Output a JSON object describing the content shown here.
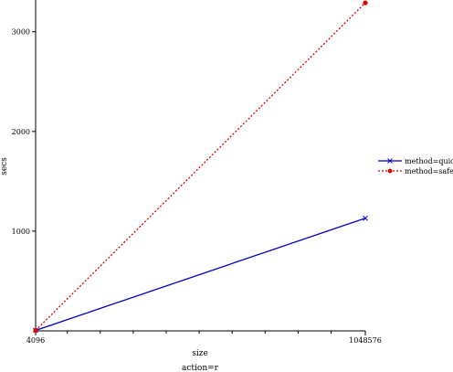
{
  "chart_data": {
    "type": "line",
    "xlabel": "size",
    "ylabel": "secs",
    "footer": "action=r",
    "xlim": [
      4096,
      1048576
    ],
    "ylim": [
      0,
      3300
    ],
    "x_ticks": [
      {
        "value": 4096,
        "label": "4096"
      },
      {
        "value": 1048576,
        "label": "1048576"
      }
    ],
    "x_minor_ticks": [
      104448,
      208896,
      313344,
      417792,
      522240,
      626688,
      731136,
      835584,
      940032
    ],
    "y_ticks": [
      {
        "value": 1000,
        "label": "1000"
      },
      {
        "value": 2000,
        "label": "2000"
      },
      {
        "value": 3000,
        "label": "3000"
      }
    ],
    "legend_position": "right",
    "series": [
      {
        "name": "method=quick",
        "color": "#0000cc",
        "marker": "x",
        "line_style": "solid",
        "x": [
          4096,
          1048576
        ],
        "y": [
          5,
          1130
        ]
      },
      {
        "name": "method=safe",
        "color": "#e00000",
        "marker": "circle",
        "line_style": "dotted",
        "x": [
          4096,
          1048576
        ],
        "y": [
          5,
          3290
        ]
      }
    ]
  }
}
